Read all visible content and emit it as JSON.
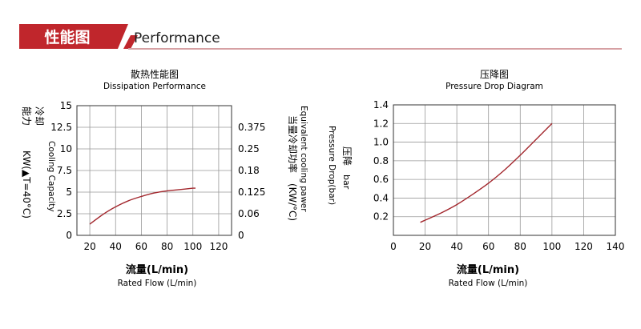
{
  "header": {
    "title_cn": "性能图",
    "title_en": "Performance",
    "accent_color": "#c0262c",
    "line_color": "#d6a0a3"
  },
  "left_chart_text": {
    "title_cn": "散热性能图",
    "title_en": "Dissipation Performance",
    "ylabel_cn_line1": "冷却",
    "ylabel_cn_line2": "能力",
    "ylabel_cn_line3": "KW(▲T=40°C)",
    "ylabel_en": "Cooling Capacity",
    "y2label_cn_line1": "当量冷却功率",
    "y2label_cn_line2": "(KW/°C)",
    "y2label_en": "Equivalent cooling pawer",
    "xlabel_cn": "流量(L/min)",
    "xlabel_en": "Rated Flow (L/min)"
  },
  "right_chart_text": {
    "title_cn": "压降图",
    "title_en": "Pressure Drop Diagram",
    "ylabel_en": "Pressure Drop(bar)",
    "ylabel_cn": "压降",
    "ylabel_unit": "bar",
    "xlabel_cn": "流量(L/min)",
    "xlabel_en": "Rated Flow (L/min)"
  },
  "chart_data": [
    {
      "type": "line",
      "xlim": [
        10,
        130
      ],
      "xticks": [
        20,
        40,
        60,
        80,
        100,
        120
      ],
      "ylim": [
        0,
        15
      ],
      "yticks": [
        0,
        2.5,
        5,
        7.5,
        10,
        12.5,
        15
      ],
      "ytick_labels": [
        "0",
        "2.5",
        "5",
        "7.5",
        "10",
        "12.5",
        "15"
      ],
      "y2ticks": [
        "0",
        "0.06",
        "0.125",
        "0.18",
        "0.25",
        "0.375"
      ],
      "grid": true,
      "series": [
        {
          "color": "#a3282e",
          "x": [
            20,
            30,
            40,
            50,
            60,
            70,
            80,
            90,
            100,
            102
          ],
          "y": [
            1.3,
            2.4,
            3.3,
            4.0,
            4.5,
            4.9,
            5.15,
            5.3,
            5.45,
            5.45
          ]
        }
      ]
    },
    {
      "type": "line",
      "xlim": [
        0,
        140
      ],
      "xticks": [
        0,
        20,
        40,
        60,
        80,
        100,
        120,
        140
      ],
      "ylim": [
        0.0,
        1.4
      ],
      "yticks": [
        0.2,
        0.4,
        0.6,
        0.8,
        1.0,
        1.2,
        1.4
      ],
      "ytick_labels": [
        "0.2",
        "0.4",
        "0.6",
        "0.8",
        "1.0",
        "1.2",
        "1.4"
      ],
      "grid": true,
      "series": [
        {
          "color": "#a3282e",
          "x": [
            17,
            30,
            40,
            50,
            60,
            70,
            80,
            90,
            100
          ],
          "y": [
            0.14,
            0.24,
            0.33,
            0.44,
            0.56,
            0.7,
            0.86,
            1.03,
            1.2
          ]
        }
      ]
    }
  ]
}
